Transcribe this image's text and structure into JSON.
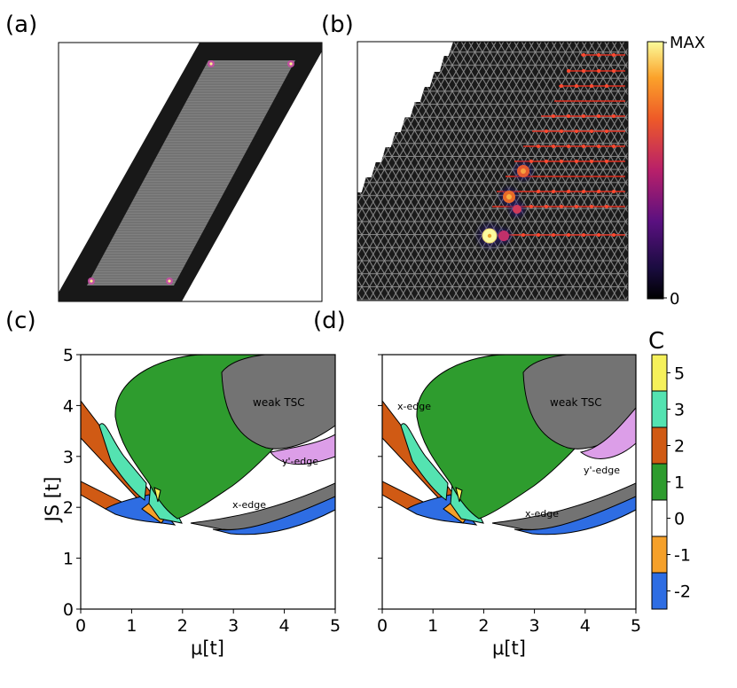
{
  "panels": {
    "a": {
      "label": "(a)"
    },
    "b": {
      "label": "(b)"
    },
    "c": {
      "label": "(c)"
    },
    "d": {
      "label": "(d)"
    }
  },
  "intensity_colorbar": {
    "max_label": "MAX",
    "min_label": "0"
  },
  "chern_colorbar": {
    "title": "C",
    "entries": [
      {
        "value": "5",
        "color": "#f5f05a"
      },
      {
        "value": "3",
        "color": "#54e3b1"
      },
      {
        "value": "2",
        "color": "#d05a14"
      },
      {
        "value": "1",
        "color": "#2e9c2e"
      },
      {
        "value": "0",
        "color": "#ffffff"
      },
      {
        "value": "-1",
        "color": "#f5a02a"
      },
      {
        "value": "-2",
        "color": "#2e6de3"
      }
    ]
  },
  "chart_data": [
    {
      "type": "area",
      "panel": "c",
      "xlabel": "μ[t]",
      "ylabel": "JS [t]",
      "xlim": [
        0,
        5
      ],
      "ylim": [
        0,
        5
      ],
      "xticks": [
        "0",
        "1",
        "2",
        "3",
        "4",
        "5"
      ],
      "yticks": [
        "0",
        "1",
        "2",
        "3",
        "4",
        "5"
      ],
      "annotations": [
        "weak TSC",
        "y'-edge",
        "x-edge"
      ]
    },
    {
      "type": "area",
      "panel": "d",
      "xlabel": "μ[t]",
      "xlim": [
        0,
        5
      ],
      "ylim": [
        0,
        5
      ],
      "xticks": [
        "0",
        "1",
        "2",
        "3",
        "4",
        "5"
      ],
      "annotations": [
        "weak TSC",
        "x-edge",
        "y'-edge",
        "x-edge"
      ]
    }
  ]
}
